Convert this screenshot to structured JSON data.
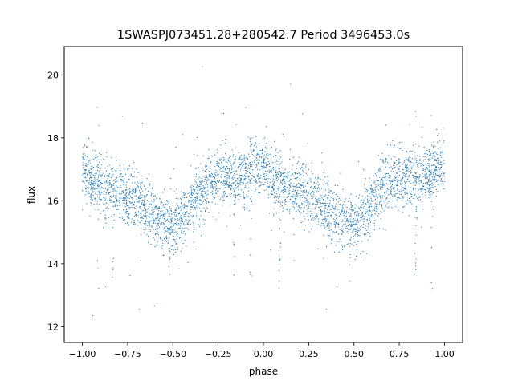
{
  "chart_data": {
    "type": "scatter",
    "title": "1SWASPJ073451.28+280542.7 Period 3496453.0s",
    "xlabel": "phase",
    "ylabel": "flux",
    "xlim": [
      -1.1,
      1.1
    ],
    "ylim": [
      11.5,
      20.9
    ],
    "xticks": [
      -1.0,
      -0.75,
      -0.5,
      -0.25,
      0.0,
      0.25,
      0.5,
      0.75,
      1.0
    ],
    "xtick_labels": [
      "−1.00",
      "−0.75",
      "−0.50",
      "−0.25",
      "0.00",
      "0.25",
      "0.50",
      "0.75",
      "1.00"
    ],
    "yticks": [
      12,
      14,
      16,
      18,
      20
    ],
    "ytick_labels": [
      "12",
      "14",
      "16",
      "18",
      "20"
    ],
    "grid": false,
    "point_color": "#1f77b4",
    "series": [
      {
        "phase_curve": {
          "x": [
            0.0,
            0.05,
            0.1,
            0.15,
            0.2,
            0.25,
            0.3,
            0.35,
            0.4,
            0.45,
            0.5,
            0.55,
            0.6,
            0.65,
            0.7,
            0.75,
            0.8,
            0.85,
            0.9,
            0.95,
            1.0
          ],
          "y": [
            17.0,
            16.6,
            16.5,
            16.4,
            16.3,
            16.2,
            16.0,
            15.8,
            15.5,
            15.3,
            15.2,
            15.4,
            15.9,
            16.4,
            16.6,
            16.7,
            16.8,
            16.7,
            16.8,
            17.1,
            17.0
          ]
        },
        "scatter_spread": 0.45,
        "dip_features": [
          {
            "x": 0.09,
            "y": 13.4
          },
          {
            "x": 0.17,
            "y": 13.6
          },
          {
            "x": 0.48,
            "y": 13.4
          },
          {
            "x": 0.84,
            "y": 13.8
          },
          {
            "x": 0.93,
            "y": 13.3
          }
        ]
      }
    ]
  }
}
